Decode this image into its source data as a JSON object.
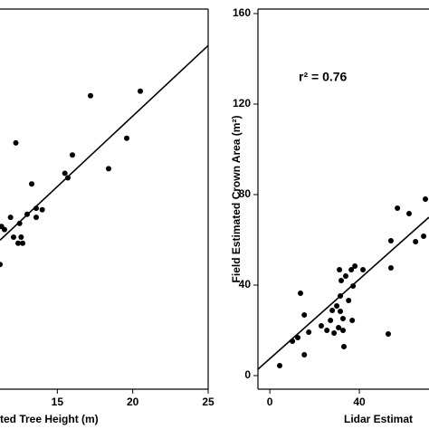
{
  "chart_data": [
    {
      "type": "scatter",
      "x_label": "ted Tree Height (m)",
      "xlim": [
        11.2,
        25
      ],
      "xticks": [
        15,
        20,
        25
      ],
      "ylim": [
        0,
        25
      ],
      "color": "#000000",
      "x": [
        12.25,
        17.2,
        20.5,
        19.6,
        16.0,
        18.4,
        15.5,
        15.7,
        13.3,
        13.6,
        14.0,
        13.6,
        13.0,
        11.9,
        12.5,
        11.5,
        11.3,
        12.1,
        12.6,
        12.7,
        12.4,
        11.2
      ],
      "values": [
        16.2,
        19.3,
        19.6,
        16.5,
        15.4,
        14.5,
        14.2,
        13.9,
        13.5,
        11.9,
        11.8,
        11.3,
        11.5,
        11.3,
        10.9,
        10.5,
        10.7,
        10.0,
        10.0,
        9.6,
        9.6,
        8.2
      ],
      "fit_line": {
        "x": [
          11.2,
          25
        ],
        "y": [
          9.8,
          22.6
        ]
      }
    },
    {
      "type": "scatter",
      "x_label": "Lidar Estimat",
      "y_label": "Field Estimated Crown Area (m²)",
      "annotation": "r² = 0.76",
      "xlim": [
        -5.3,
        71.1
      ],
      "xticks": [
        0,
        40
      ],
      "ylim": [
        -6,
        162
      ],
      "yticks": [
        0,
        40,
        80,
        120,
        160
      ],
      "color": "#000000",
      "x": [
        4.4,
        10.1,
        12.5,
        13.7,
        15.4,
        15.4,
        17.4,
        23.0,
        25.5,
        27.1,
        27.9,
        28.7,
        30.7,
        29.9,
        31.5,
        31.5,
        32.7,
        31.1,
        31.9,
        33.9,
        32.7,
        35.2,
        33.1,
        36.4,
        36.8,
        38.0,
        37.2,
        41.6,
        52.9,
        54.1,
        54.1,
        57.0,
        62.2,
        65.1,
        69.5,
        68.7
      ],
      "values": [
        4.4,
        15.2,
        16.8,
        36.4,
        26.8,
        9.2,
        19.2,
        22.0,
        20.0,
        24.4,
        28.8,
        18.8,
        21.2,
        30.8,
        28.4,
        35.2,
        20.0,
        46.8,
        42.0,
        44.0,
        25.2,
        33.2,
        12.8,
        46.8,
        24.4,
        48.4,
        39.6,
        46.8,
        18.4,
        47.6,
        59.6,
        74.0,
        71.6,
        59.2,
        78.0,
        61.6
      ],
      "fit_line": {
        "x": [
          -5.3,
          71.1
        ],
        "y": [
          2.8,
          70
        ]
      }
    }
  ]
}
